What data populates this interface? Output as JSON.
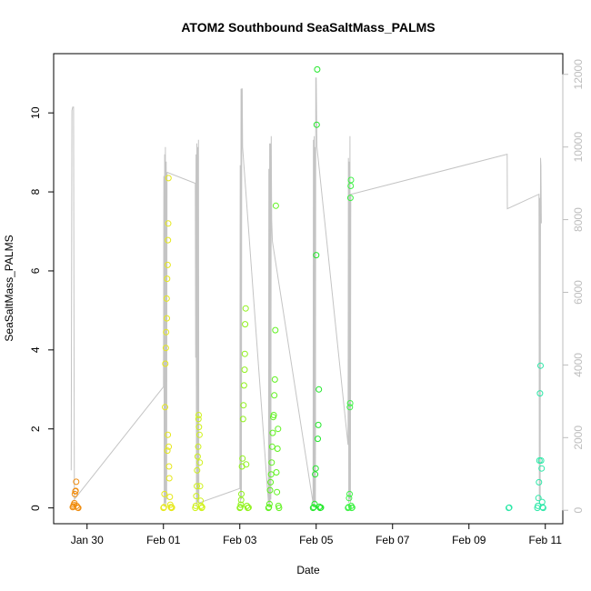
{
  "chart_data": {
    "type": "scatter",
    "title": "ATOM2 Southbound SeaSaltMass_PALMS",
    "xlabel": "Date",
    "ylabel": "SeaSaltMass_PALMS",
    "y2label": "",
    "x_ticks": [
      "Jan 30",
      "Feb 01",
      "Feb 03",
      "Feb 05",
      "Feb 07",
      "Feb 09",
      "Feb 11"
    ],
    "y_ticks": [
      "0",
      "2",
      "4",
      "6",
      "8",
      "10"
    ],
    "y2_ticks": [
      "0",
      "2000",
      "4000",
      "6000",
      "8000",
      "10000",
      "12000"
    ],
    "xlim": [
      "2017-01-29 03:00",
      "2017-02-11 11:00"
    ],
    "ylim": [
      -0.4,
      11.5
    ],
    "y2lim": [
      -370,
      12570
    ],
    "y2_series": "altitude flight track (gray line, right axis)",
    "colors": {
      "track": "#c4c4c4",
      "axis": "#000000",
      "right_axis": "#bdbdbd",
      "f1": "#f08c0e",
      "f2": "#e6e81a",
      "f3": "#cff219",
      "f4": "#8ff21a",
      "f5": "#5ff21f",
      "f6": "#22e82a",
      "f7": "#3ff246",
      "f8": "#2ee8a8"
    },
    "series": [
      {
        "color": "f1",
        "points": [
          [
            "2017-01-29 15:00",
            0.02
          ],
          [
            "2017-01-29 15:20",
            0.04
          ],
          [
            "2017-01-29 15:40",
            0.08
          ],
          [
            "2017-01-29 16:00",
            0.12
          ],
          [
            "2017-01-29 16:20",
            0.35
          ],
          [
            "2017-01-29 16:40",
            0.42
          ],
          [
            "2017-01-29 16:50",
            0.43
          ],
          [
            "2017-01-29 17:10",
            0.66
          ],
          [
            "2017-01-29 17:30",
            0.05
          ],
          [
            "2017-01-29 18:00",
            0.01
          ],
          [
            "2017-01-29 18:30",
            0.0
          ]
        ]
      },
      {
        "color": "f2",
        "points": [
          [
            "2017-02-01 00:00",
            0.0
          ],
          [
            "2017-02-01 00:20",
            0.02
          ],
          [
            "2017-02-01 00:40",
            0.35
          ],
          [
            "2017-02-01 01:00",
            2.55
          ],
          [
            "2017-02-01 01:10",
            3.65
          ],
          [
            "2017-02-01 01:30",
            4.05
          ],
          [
            "2017-02-01 01:40",
            4.45
          ],
          [
            "2017-02-01 02:00",
            5.3
          ],
          [
            "2017-02-01 02:20",
            5.8
          ],
          [
            "2017-02-01 02:40",
            6.15
          ],
          [
            "2017-02-01 02:50",
            6.78
          ],
          [
            "2017-02-01 03:00",
            7.2
          ],
          [
            "2017-02-01 03:10",
            8.35
          ],
          [
            "2017-02-01 02:10",
            4.8
          ],
          [
            "2017-02-01 02:30",
            1.45
          ],
          [
            "2017-02-01 02:45",
            1.85
          ],
          [
            "2017-02-01 03:20",
            1.55
          ],
          [
            "2017-02-01 03:30",
            1.05
          ],
          [
            "2017-02-01 03:40",
            0.75
          ],
          [
            "2017-02-01 04:00",
            0.28
          ],
          [
            "2017-02-01 04:20",
            0.08
          ],
          [
            "2017-02-01 04:40",
            0.02
          ],
          [
            "2017-02-01 05:00",
            0.0
          ],
          [
            "2017-02-01 05:20",
            0.01
          ]
        ]
      },
      {
        "color": "f3",
        "points": [
          [
            "2017-02-01 20:00",
            0.0
          ],
          [
            "2017-02-01 20:20",
            0.05
          ],
          [
            "2017-02-01 20:40",
            0.3
          ],
          [
            "2017-02-01 21:00",
            0.55
          ],
          [
            "2017-02-01 21:10",
            0.95
          ],
          [
            "2017-02-01 21:30",
            1.3
          ],
          [
            "2017-02-01 21:50",
            1.55
          ],
          [
            "2017-02-01 22:00",
            2.25
          ],
          [
            "2017-02-01 22:10",
            2.35
          ],
          [
            "2017-02-01 22:20",
            2.05
          ],
          [
            "2017-02-01 22:40",
            1.85
          ],
          [
            "2017-02-01 22:50",
            1.15
          ],
          [
            "2017-02-01 23:00",
            0.55
          ],
          [
            "2017-02-01 23:20",
            0.18
          ],
          [
            "2017-02-01 23:40",
            0.05
          ],
          [
            "2017-02-02 00:00",
            0.0
          ],
          [
            "2017-02-02 00:20",
            0.02
          ]
        ]
      },
      {
        "color": "f4",
        "points": [
          [
            "2017-02-03 00:00",
            0.0
          ],
          [
            "2017-02-03 00:20",
            0.02
          ],
          [
            "2017-02-03 00:40",
            0.08
          ],
          [
            "2017-02-03 00:50",
            0.2
          ],
          [
            "2017-02-03 01:00",
            0.35
          ],
          [
            "2017-02-03 01:20",
            1.05
          ],
          [
            "2017-02-03 01:40",
            1.25
          ],
          [
            "2017-02-03 02:00",
            2.25
          ],
          [
            "2017-02-03 02:20",
            2.6
          ],
          [
            "2017-02-03 02:40",
            3.1
          ],
          [
            "2017-02-03 03:00",
            3.5
          ],
          [
            "2017-02-03 03:10",
            3.9
          ],
          [
            "2017-02-03 03:20",
            4.65
          ],
          [
            "2017-02-03 03:40",
            5.05
          ],
          [
            "2017-02-03 04:00",
            1.1
          ],
          [
            "2017-02-03 04:30",
            0.05
          ],
          [
            "2017-02-03 05:00",
            0.0
          ],
          [
            "2017-02-03 05:30",
            0.01
          ]
        ]
      },
      {
        "color": "f5",
        "points": [
          [
            "2017-02-03 18:00",
            0.0
          ],
          [
            "2017-02-03 18:20",
            0.02
          ],
          [
            "2017-02-03 18:40",
            0.1
          ],
          [
            "2017-02-03 19:00",
            0.45
          ],
          [
            "2017-02-03 19:20",
            0.65
          ],
          [
            "2017-02-03 19:40",
            0.85
          ],
          [
            "2017-02-03 20:00",
            1.15
          ],
          [
            "2017-02-03 20:20",
            1.55
          ],
          [
            "2017-02-03 20:40",
            1.9
          ],
          [
            "2017-02-03 21:00",
            2.3
          ],
          [
            "2017-02-03 21:20",
            2.35
          ],
          [
            "2017-02-03 21:40",
            2.85
          ],
          [
            "2017-02-03 22:00",
            3.25
          ],
          [
            "2017-02-03 22:20",
            4.5
          ],
          [
            "2017-02-03 22:40",
            7.65
          ],
          [
            "2017-02-03 23:00",
            0.9
          ],
          [
            "2017-02-03 23:20",
            0.4
          ],
          [
            "2017-02-03 23:40",
            1.5
          ],
          [
            "2017-02-04 00:00",
            2.0
          ],
          [
            "2017-02-04 00:20",
            0.05
          ],
          [
            "2017-02-04 00:40",
            0.0
          ]
        ]
      },
      {
        "color": "f6",
        "points": [
          [
            "2017-02-04 22:00",
            0.0
          ],
          [
            "2017-02-04 22:30",
            0.02
          ],
          [
            "2017-02-04 23:00",
            0.1
          ],
          [
            "2017-02-04 23:20",
            0.85
          ],
          [
            "2017-02-04 23:40",
            1.0
          ],
          [
            "2017-02-05 00:00",
            6.4
          ],
          [
            "2017-02-05 00:20",
            9.7
          ],
          [
            "2017-02-05 00:40",
            11.1
          ],
          [
            "2017-02-05 01:00",
            1.75
          ],
          [
            "2017-02-05 01:20",
            2.1
          ],
          [
            "2017-02-05 01:40",
            3.0
          ],
          [
            "2017-02-05 02:00",
            0.03
          ],
          [
            "2017-02-05 02:30",
            0.0
          ],
          [
            "2017-02-05 03:00",
            0.01
          ]
        ]
      },
      {
        "color": "f7",
        "points": [
          [
            "2017-02-05 20:00",
            0.0
          ],
          [
            "2017-02-05 20:20",
            0.02
          ],
          [
            "2017-02-05 20:40",
            0.25
          ],
          [
            "2017-02-05 21:00",
            0.35
          ],
          [
            "2017-02-05 21:10",
            2.55
          ],
          [
            "2017-02-05 21:20",
            2.65
          ],
          [
            "2017-02-05 21:30",
            7.85
          ],
          [
            "2017-02-05 21:40",
            8.15
          ],
          [
            "2017-02-05 21:50",
            8.3
          ],
          [
            "2017-02-05 22:00",
            0.05
          ],
          [
            "2017-02-05 22:20",
            0.0
          ],
          [
            "2017-02-05 22:40",
            0.01
          ]
        ]
      },
      {
        "color": "f8",
        "points": [
          [
            "2017-02-10 01:00",
            0.0
          ],
          [
            "2017-02-10 01:20",
            0.01
          ],
          [
            "2017-02-10 19:00",
            0.0
          ],
          [
            "2017-02-10 19:20",
            0.05
          ],
          [
            "2017-02-10 19:40",
            0.25
          ],
          [
            "2017-02-10 20:00",
            0.65
          ],
          [
            "2017-02-10 20:20",
            1.2
          ],
          [
            "2017-02-10 20:40",
            2.9
          ],
          [
            "2017-02-10 21:00",
            3.6
          ],
          [
            "2017-02-10 21:20",
            1.2
          ],
          [
            "2017-02-10 21:40",
            1.0
          ],
          [
            "2017-02-10 22:00",
            0.15
          ],
          [
            "2017-02-10 22:20",
            0.02
          ],
          [
            "2017-02-10 22:40",
            0.0
          ]
        ]
      }
    ],
    "track": [
      [
        "2017-01-29 14:00",
        1100
      ],
      [
        "2017-01-29 14:30",
        11000
      ],
      [
        "2017-01-29 15:00",
        11100
      ],
      [
        "2017-01-29 15:30",
        11100
      ],
      [
        "2017-01-29 16:00",
        300
      ],
      [
        "2017-02-01 00:00",
        3400
      ],
      [
        "2017-02-01 00:15",
        9200
      ],
      [
        "2017-02-01 00:30",
        100
      ],
      [
        "2017-02-01 00:45",
        9800
      ],
      [
        "2017-02-01 01:00",
        200
      ],
      [
        "2017-02-01 01:15",
        10000
      ],
      [
        "2017-02-01 01:30",
        150
      ],
      [
        "2017-02-01 01:45",
        9600
      ],
      [
        "2017-02-01 02:00",
        300
      ],
      [
        "2017-02-01 02:15",
        9300
      ],
      [
        "2017-02-01 02:30",
        9300
      ],
      [
        "2017-02-01 20:00",
        9000
      ],
      [
        "2017-02-01 20:15",
        4200
      ],
      [
        "2017-02-01 20:30",
        9800
      ],
      [
        "2017-02-01 20:45",
        100
      ],
      [
        "2017-02-01 21:00",
        10100
      ],
      [
        "2017-02-01 21:15",
        200
      ],
      [
        "2017-02-01 21:30",
        10000
      ],
      [
        "2017-02-01 21:45",
        300
      ],
      [
        "2017-02-01 22:00",
        10200
      ],
      [
        "2017-02-01 22:15",
        200
      ],
      [
        "2017-02-03 00:00",
        600
      ],
      [
        "2017-02-03 00:15",
        9500
      ],
      [
        "2017-02-03 00:30",
        200
      ],
      [
        "2017-02-03 00:45",
        11600
      ],
      [
        "2017-02-03 01:00",
        300
      ],
      [
        "2017-02-03 01:15",
        11600
      ],
      [
        "2017-02-03 01:30",
        11600
      ],
      [
        "2017-02-03 01:45",
        10000
      ],
      [
        "2017-02-03 18:00",
        200
      ],
      [
        "2017-02-03 18:15",
        9400
      ],
      [
        "2017-02-03 18:30",
        100
      ],
      [
        "2017-02-03 18:45",
        10100
      ],
      [
        "2017-02-03 19:00",
        200
      ],
      [
        "2017-02-03 19:15",
        10100
      ],
      [
        "2017-02-03 19:30",
        300
      ],
      [
        "2017-02-03 19:45",
        10300
      ],
      [
        "2017-02-03 20:00",
        8000
      ],
      [
        "2017-02-03 20:30",
        7400
      ],
      [
        "2017-02-04 22:00",
        200
      ],
      [
        "2017-02-04 22:15",
        10200
      ],
      [
        "2017-02-04 22:30",
        100
      ],
      [
        "2017-02-04 22:45",
        10300
      ],
      [
        "2017-02-04 23:00",
        200
      ],
      [
        "2017-02-04 23:15",
        10000
      ],
      [
        "2017-02-04 23:30",
        200
      ],
      [
        "2017-02-04 23:45",
        11900
      ],
      [
        "2017-02-05 00:00",
        11900
      ],
      [
        "2017-02-05 00:30",
        10000
      ],
      [
        "2017-02-05 20:00",
        1800
      ],
      [
        "2017-02-05 20:15",
        9700
      ],
      [
        "2017-02-05 20:30",
        200
      ],
      [
        "2017-02-05 20:45",
        9600
      ],
      [
        "2017-02-05 21:00",
        300
      ],
      [
        "2017-02-05 21:15",
        10300
      ],
      [
        "2017-02-05 21:30",
        200
      ],
      [
        "2017-02-05 21:45",
        8700
      ],
      [
        "2017-02-05 22:00",
        8700
      ],
      [
        "2017-02-10 00:00",
        9800
      ],
      [
        "2017-02-10 00:10",
        8300
      ],
      [
        "2017-02-10 20:00",
        8700
      ],
      [
        "2017-02-10 20:15",
        200
      ],
      [
        "2017-02-10 20:30",
        8600
      ],
      [
        "2017-02-10 20:45",
        300
      ],
      [
        "2017-02-10 21:00",
        9700
      ],
      [
        "2017-02-10 21:15",
        9500
      ],
      [
        "2017-02-10 21:30",
        7900
      ]
    ]
  }
}
